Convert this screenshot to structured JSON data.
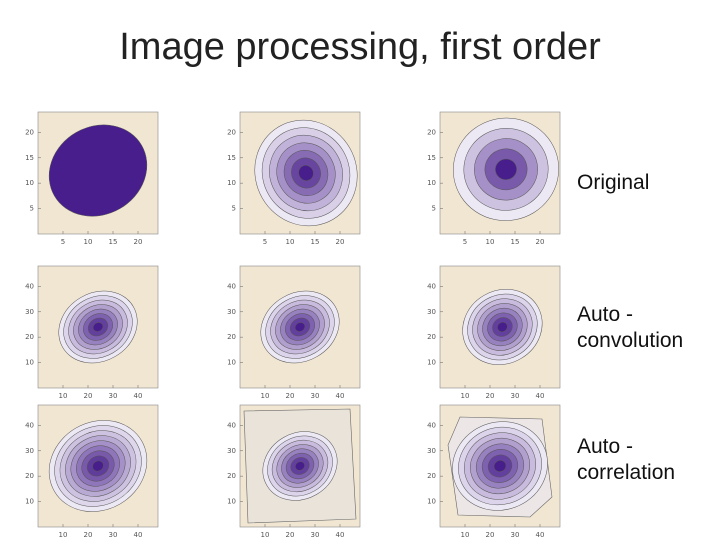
{
  "title": "Image processing, first order",
  "rows": [
    {
      "label_lines": [
        "Original"
      ],
      "panels": [
        {
          "xticks": [
            "5",
            "10",
            "15",
            "20"
          ],
          "yticks": [
            "5",
            "10",
            "15",
            "20"
          ]
        },
        {
          "xticks": [
            "5",
            "10",
            "15",
            "20"
          ],
          "yticks": [
            "5",
            "10",
            "15",
            "20"
          ]
        },
        {
          "xticks": [
            "5",
            "10",
            "15",
            "20"
          ],
          "yticks": [
            "5",
            "10",
            "15",
            "20"
          ]
        }
      ]
    },
    {
      "label_lines": [
        "Auto -",
        "convolution"
      ],
      "panels": [
        {
          "xticks": [
            "10",
            "20",
            "30",
            "40"
          ],
          "yticks": [
            "10",
            "20",
            "30",
            "40"
          ]
        },
        {
          "xticks": [
            "10",
            "20",
            "30",
            "40"
          ],
          "yticks": [
            "10",
            "20",
            "30",
            "40"
          ]
        },
        {
          "xticks": [
            "10",
            "20",
            "30",
            "40"
          ],
          "yticks": [
            "10",
            "20",
            "30",
            "40"
          ]
        }
      ]
    },
    {
      "label_lines": [
        "Auto -",
        "correlation"
      ],
      "panels": [
        {
          "xticks": [
            "10",
            "20",
            "30",
            "40"
          ],
          "yticks": [
            "10",
            "20",
            "30",
            "40"
          ]
        },
        {
          "xticks": [
            "10",
            "20",
            "30",
            "40"
          ],
          "yticks": [
            "10",
            "20",
            "30",
            "40"
          ]
        },
        {
          "xticks": [
            "10",
            "20",
            "30",
            "40"
          ],
          "yticks": [
            "10",
            "20",
            "30",
            "40"
          ]
        }
      ]
    }
  ]
}
